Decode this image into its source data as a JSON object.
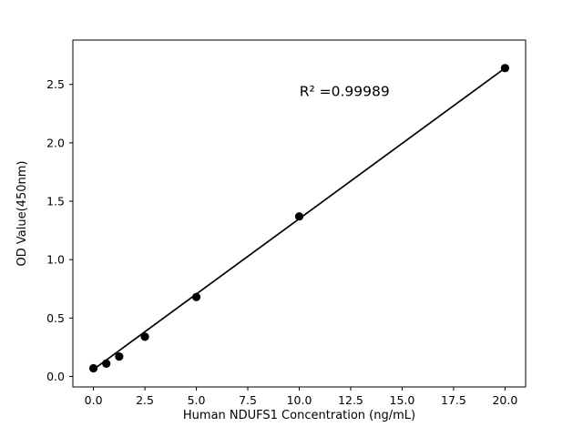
{
  "chart_data": {
    "type": "scatter",
    "title": "",
    "xlabel": "Human NDUFS1 Concentration (ng/mL)",
    "ylabel": "OD Value(450nm)",
    "annotation": "R² =0.99989",
    "annotation_pos": {
      "x": 12.2,
      "y": 2.44
    },
    "x": [
      0,
      0.625,
      1.25,
      2.5,
      5,
      10,
      20
    ],
    "y": [
      0.07,
      0.11,
      0.17,
      0.34,
      0.68,
      1.37,
      2.64
    ],
    "fit_line": {
      "slope": 0.129,
      "intercept": 0.06,
      "x_start": 0,
      "x_end": 20
    },
    "x_ticks": [
      0.0,
      2.5,
      5.0,
      7.5,
      10.0,
      12.5,
      15.0,
      17.5,
      20.0
    ],
    "y_ticks": [
      0.0,
      0.5,
      1.0,
      1.5,
      2.0,
      2.5
    ],
    "xlim": [
      -1.0,
      21.0
    ],
    "ylim": [
      -0.09,
      2.88
    ],
    "grid": false,
    "legend": null,
    "colors": {
      "marker": "#000000",
      "line": "#000000",
      "axis": "#000000",
      "text": "#000000",
      "background": "#ffffff"
    }
  }
}
